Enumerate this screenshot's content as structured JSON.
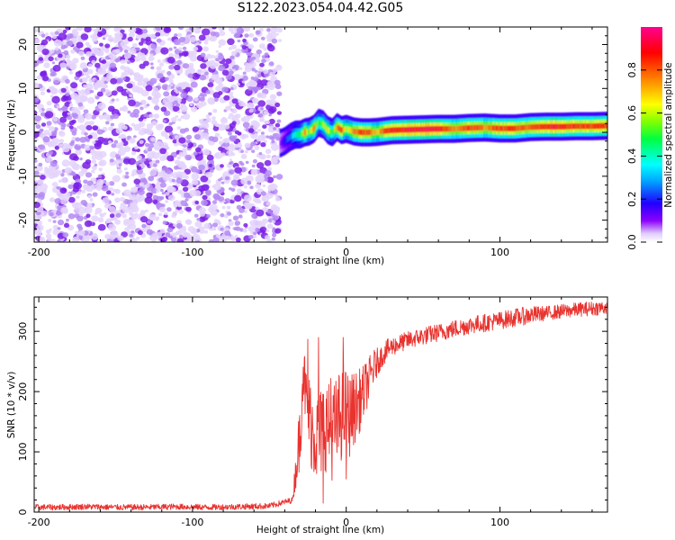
{
  "figure_title": "S122.2023.054.04.42.G05",
  "colors": {
    "snr_line": "#e8332f",
    "scatter_violet": "#7a1ee6",
    "scatter_light": "#e4d4fb"
  },
  "chart_data": [
    {
      "type": "heatmap",
      "title": "",
      "xlabel": "Height of straight line (km)",
      "ylabel": "Frequency (Hz)",
      "colorbar_label": "Normalized spectral amplitude",
      "xlim": [
        -203,
        170
      ],
      "ylim": [
        -25,
        24
      ],
      "x_ticks": [
        -200,
        -100,
        0,
        100
      ],
      "x_tick_labels": [
        "-200",
        "-100",
        "0",
        "100"
      ],
      "y_ticks": [
        -20,
        -10,
        0,
        10,
        20
      ],
      "y_tick_labels": [
        "-20",
        "-10",
        "0",
        "10",
        "20"
      ],
      "colorbar_ticks": [
        0.0,
        0.2,
        0.4,
        0.6,
        0.8
      ],
      "colorbar_tick_labels": [
        "0.0",
        "0.2",
        "0.4",
        "0.6",
        "0.8"
      ],
      "colorbar_range": [
        0,
        1
      ],
      "noise_region_x": [
        -203,
        -43
      ],
      "ridge": {
        "x": [
          -43,
          -40,
          -36,
          -33,
          -30,
          -27,
          -24,
          -21,
          -18,
          -15,
          -12,
          -9,
          -6,
          -3,
          0,
          5,
          10,
          15,
          20,
          25,
          30,
          40,
          50,
          60,
          70,
          80,
          90,
          100,
          110,
          120,
          130,
          140,
          150,
          160,
          170
        ],
        "y": [
          -2.5,
          -2.0,
          -1.0,
          -0.5,
          -0.5,
          0.0,
          0.2,
          0.8,
          2.2,
          1.8,
          0.5,
          0.0,
          1.2,
          0.5,
          0.8,
          0.2,
          0.0,
          0.0,
          0.1,
          0.3,
          0.5,
          0.6,
          0.7,
          0.8,
          0.8,
          1.0,
          1.1,
          0.9,
          0.9,
          1.2,
          1.3,
          1.3,
          1.4,
          1.4,
          1.5
        ],
        "amplitude": [
          0.1,
          0.2,
          0.3,
          0.45,
          0.5,
          0.8,
          0.55,
          0.85,
          0.5,
          0.6,
          0.7,
          0.5,
          0.8,
          0.9,
          0.6,
          0.8,
          0.9,
          0.85,
          0.7,
          0.9,
          0.95,
          0.95,
          1.0,
          0.95,
          0.8,
          0.9,
          0.8,
          0.9,
          0.9,
          0.85,
          0.95,
          0.95,
          0.9,
          0.9,
          0.9
        ]
      }
    },
    {
      "type": "line",
      "title": "",
      "xlabel": "Height of straight line (km)",
      "ylabel": "SNR (10 * v/v)",
      "xlim": [
        -203,
        170
      ],
      "ylim": [
        0,
        357
      ],
      "x_ticks": [
        -200,
        -100,
        0,
        100
      ],
      "x_tick_labels": [
        "-200",
        "-100",
        "0",
        "100"
      ],
      "y_ticks": [
        0,
        100,
        200,
        300
      ],
      "y_tick_labels": [
        "0",
        "100",
        "200",
        "300"
      ],
      "series": [
        {
          "name": "",
          "x": [
            -203,
            -190,
            -170,
            -150,
            -130,
            -110,
            -90,
            -70,
            -50,
            -35,
            -30,
            -28,
            -26,
            -22,
            -18,
            -14,
            -10,
            -6,
            -2,
            2,
            6,
            10,
            14,
            18,
            22,
            26,
            30,
            40,
            50,
            60,
            70,
            80,
            90,
            100,
            110,
            120,
            130,
            140,
            150,
            160,
            170
          ],
          "y": [
            8,
            8,
            9,
            8,
            8,
            9,
            8,
            9,
            10,
            20,
            130,
            245,
            180,
            140,
            120,
            150,
            130,
            145,
            170,
            160,
            175,
            190,
            215,
            240,
            255,
            268,
            275,
            285,
            292,
            298,
            304,
            310,
            314,
            318,
            323,
            327,
            330,
            333,
            336,
            338,
            340
          ],
          "noise_amplitude": [
            5,
            5,
            5,
            5,
            5,
            5,
            5,
            5,
            5,
            5,
            60,
            50,
            60,
            80,
            80,
            80,
            80,
            80,
            80,
            70,
            60,
            50,
            40,
            30,
            20,
            18,
            16,
            15,
            15,
            15,
            15,
            15,
            15,
            15,
            15,
            15,
            12,
            12,
            12,
            12,
            12
          ],
          "spikes": [
            {
              "x": -25,
              "y": 287
            },
            {
              "x": -18,
              "y": 290
            },
            {
              "x": -10,
              "y": 222
            },
            {
              "x": -2,
              "y": 290
            },
            {
              "x": -15,
              "y": 15
            },
            {
              "x": 0,
              "y": 55
            }
          ]
        }
      ]
    }
  ]
}
